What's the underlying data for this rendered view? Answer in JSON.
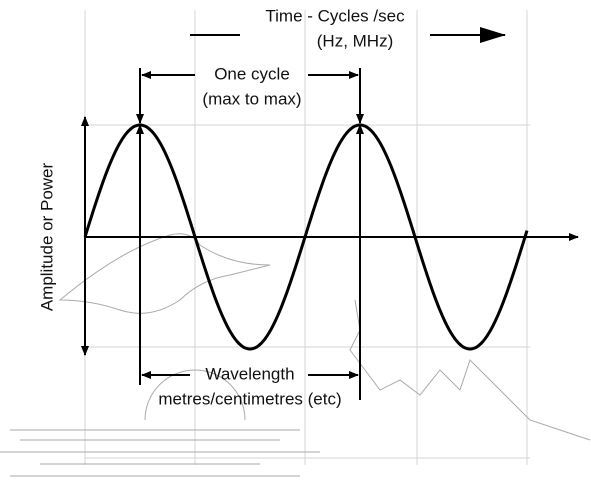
{
  "time_label": {
    "line1": "Time - Cycles /sec",
    "line2": "(Hz, MHz)"
  },
  "cycle_label": {
    "line1": "One cycle",
    "line2": "(max to max)"
  },
  "amplitude_label": "Amplitude or Power",
  "wavelength_label": {
    "line1": "Wavelength",
    "line2": "metres/centimetres (etc)"
  }
}
